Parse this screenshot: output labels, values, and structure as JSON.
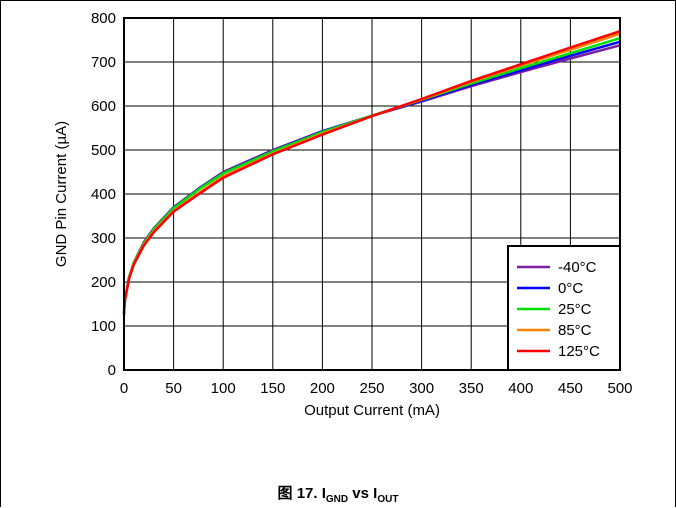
{
  "caption": {
    "prefix": "图 17. I",
    "sub1": "GND",
    "mid": " vs I",
    "sub2": "OUT"
  },
  "chart_data": {
    "type": "line",
    "xlabel": "Output Current (mA)",
    "ylabel": "GND Pin Current (µA)",
    "xlim": [
      0,
      500
    ],
    "ylim": [
      0,
      800
    ],
    "xticks": [
      0,
      50,
      100,
      150,
      200,
      250,
      300,
      350,
      400,
      450,
      500
    ],
    "yticks": [
      0,
      100,
      200,
      300,
      400,
      500,
      600,
      700,
      800
    ],
    "grid": true,
    "legend_position": "bottom-right",
    "series": [
      {
        "name": "-40°C",
        "color": "#7B1FA2",
        "x": [
          0,
          1,
          5,
          10,
          20,
          30,
          50,
          75,
          100,
          150,
          200,
          250,
          300,
          350,
          400,
          450,
          500
        ],
        "y": [
          125,
          160,
          210,
          245,
          290,
          322,
          370,
          412,
          450,
          500,
          543,
          578,
          610,
          645,
          677,
          708,
          738
        ]
      },
      {
        "name": "0°C",
        "color": "#0000FF",
        "x": [
          0,
          1,
          5,
          10,
          20,
          30,
          50,
          75,
          100,
          150,
          200,
          250,
          300,
          350,
          400,
          450,
          500
        ],
        "y": [
          128,
          160,
          210,
          244,
          289,
          321,
          369,
          411,
          448,
          498,
          542,
          578,
          612,
          648,
          681,
          714,
          746
        ]
      },
      {
        "name": "25°C",
        "color": "#00E000",
        "x": [
          0,
          1,
          5,
          10,
          20,
          30,
          50,
          75,
          100,
          150,
          200,
          250,
          300,
          350,
          400,
          450,
          500
        ],
        "y": [
          132,
          160,
          210,
          244,
          288,
          320,
          368,
          410,
          447,
          497,
          541,
          578,
          614,
          651,
          686,
          720,
          754
        ]
      },
      {
        "name": "85°C",
        "color": "#FF7F00",
        "x": [
          0,
          1,
          5,
          10,
          20,
          30,
          50,
          75,
          100,
          150,
          200,
          250,
          300,
          350,
          400,
          450,
          500
        ],
        "y": [
          135,
          160,
          208,
          242,
          285,
          316,
          362,
          402,
          440,
          492,
          537,
          577,
          615,
          655,
          692,
          728,
          764
        ]
      },
      {
        "name": "125°C",
        "color": "#FF0000",
        "x": [
          0,
          1,
          5,
          10,
          20,
          30,
          50,
          75,
          100,
          150,
          200,
          250,
          300,
          350,
          400,
          450,
          500
        ],
        "y": [
          140,
          160,
          207,
          240,
          283,
          313,
          360,
          399,
          437,
          490,
          535,
          577,
          616,
          657,
          695,
          733,
          770
        ]
      }
    ]
  }
}
